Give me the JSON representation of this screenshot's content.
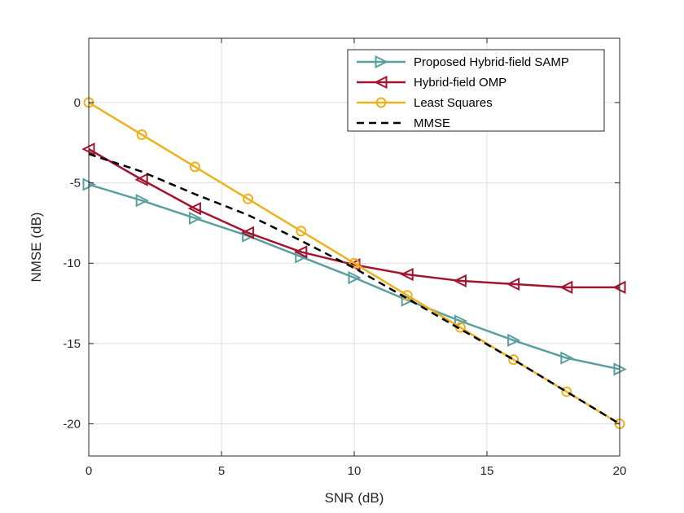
{
  "chart_data": {
    "type": "line",
    "xlabel": "SNR (dB)",
    "ylabel": "NMSE (dB)",
    "xlim": [
      0,
      20
    ],
    "ylim": [
      -22,
      4
    ],
    "xticks": [
      0,
      5,
      10,
      15,
      20
    ],
    "yticks": [
      0,
      -5,
      -10,
      -15,
      -20
    ],
    "xtick_labels": [
      "0",
      "5",
      "10",
      "15",
      "20"
    ],
    "ytick_labels": [
      "0",
      "-5",
      "-10",
      "-15",
      "-20"
    ],
    "grid": true,
    "legend_position": "top-right",
    "series": [
      {
        "name": "Proposed Hybrid-field SAMP",
        "color": "#5B9EA0",
        "marker": "triangle-right",
        "line_style": "solid",
        "x": [
          0,
          2,
          4,
          6,
          8,
          10,
          12,
          14,
          16,
          18,
          20
        ],
        "y": [
          -5.1,
          -6.1,
          -7.2,
          -8.3,
          -9.6,
          -10.9,
          -12.3,
          -13.6,
          -14.8,
          -15.9,
          -16.6
        ]
      },
      {
        "name": "Hybrid-field OMP",
        "color": "#A2142F",
        "marker": "triangle-left",
        "line_style": "solid",
        "x": [
          0,
          2,
          4,
          6,
          8,
          10,
          12,
          14,
          16,
          18,
          20
        ],
        "y": [
          -2.9,
          -4.8,
          -6.6,
          -8.1,
          -9.3,
          -10.1,
          -10.7,
          -11.1,
          -11.3,
          -11.5,
          -11.5
        ]
      },
      {
        "name": "Least Squares",
        "color": "#EDB120",
        "marker": "circle",
        "line_style": "solid",
        "x": [
          0,
          2,
          4,
          6,
          8,
          10,
          12,
          14,
          16,
          18,
          20
        ],
        "y": [
          0,
          -2,
          -4,
          -6,
          -8,
          -10,
          -12,
          -14,
          -16,
          -18,
          -20
        ]
      },
      {
        "name": "MMSE",
        "color": "#000000",
        "marker": "none",
        "line_style": "dashed",
        "x": [
          0,
          2,
          4,
          6,
          8,
          10,
          12,
          14,
          16,
          18,
          20
        ],
        "y": [
          -3.2,
          -4.3,
          -5.7,
          -7.0,
          -8.6,
          -10.3,
          -12.2,
          -14.1,
          -16.0,
          -18.0,
          -20.0
        ]
      }
    ]
  }
}
